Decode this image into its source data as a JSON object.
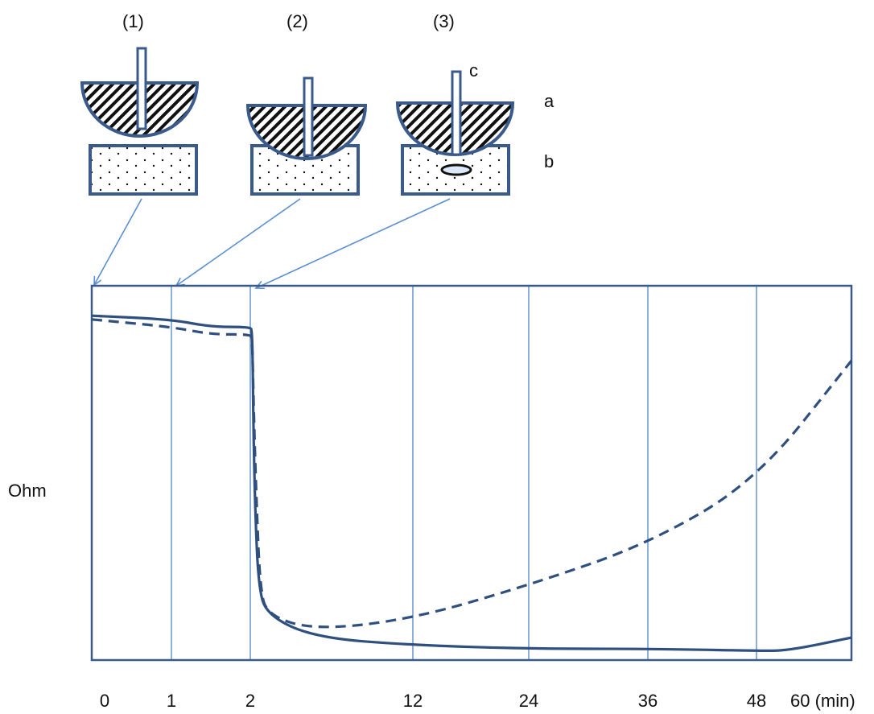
{
  "stage_labels": [
    "(1)",
    "(2)",
    "(3)"
  ],
  "part_labels": {
    "a": "a",
    "b": "b",
    "c": "c"
  },
  "colors": {
    "frame": "#3a5a8c",
    "thin": "#5b8fd0",
    "curve": "#2f4f7f"
  },
  "chart_data": {
    "type": "line",
    "title": "",
    "xlabel": "(min)",
    "ylabel": "Ohm",
    "x_ticks": [
      "0",
      "1",
      "2",
      "12",
      "24",
      "36",
      "48",
      "60 (min)"
    ],
    "x_tick_positions": [
      0,
      1,
      2,
      12,
      24,
      36,
      48,
      60
    ],
    "ylim": [
      0,
      100
    ],
    "grid": "vertical lines at ticks 1, 2, 12, 24, 36, 48",
    "legend": "none",
    "series": [
      {
        "style": "solid",
        "points": [
          [
            0,
            92
          ],
          [
            1,
            91
          ],
          [
            1.5,
            89
          ],
          [
            2,
            89
          ],
          [
            2.1,
            88
          ],
          [
            2.15,
            80
          ],
          [
            2.2,
            60
          ],
          [
            2.3,
            40
          ],
          [
            2.5,
            20
          ],
          [
            3,
            12
          ],
          [
            6,
            6
          ],
          [
            12,
            4
          ],
          [
            24,
            3
          ],
          [
            36,
            3
          ],
          [
            48,
            2.5
          ],
          [
            52,
            2.5
          ],
          [
            60,
            6
          ]
        ]
      },
      {
        "style": "dashed",
        "points": [
          [
            0,
            91
          ],
          [
            1,
            89
          ],
          [
            1.5,
            87
          ],
          [
            2,
            87
          ],
          [
            2.1,
            86
          ],
          [
            2.15,
            80
          ],
          [
            2.25,
            60
          ],
          [
            2.4,
            40
          ],
          [
            2.6,
            20
          ],
          [
            3,
            12
          ],
          [
            6,
            8
          ],
          [
            12,
            11
          ],
          [
            24,
            20
          ],
          [
            36,
            31
          ],
          [
            48,
            48
          ],
          [
            60,
            80
          ]
        ]
      }
    ]
  }
}
